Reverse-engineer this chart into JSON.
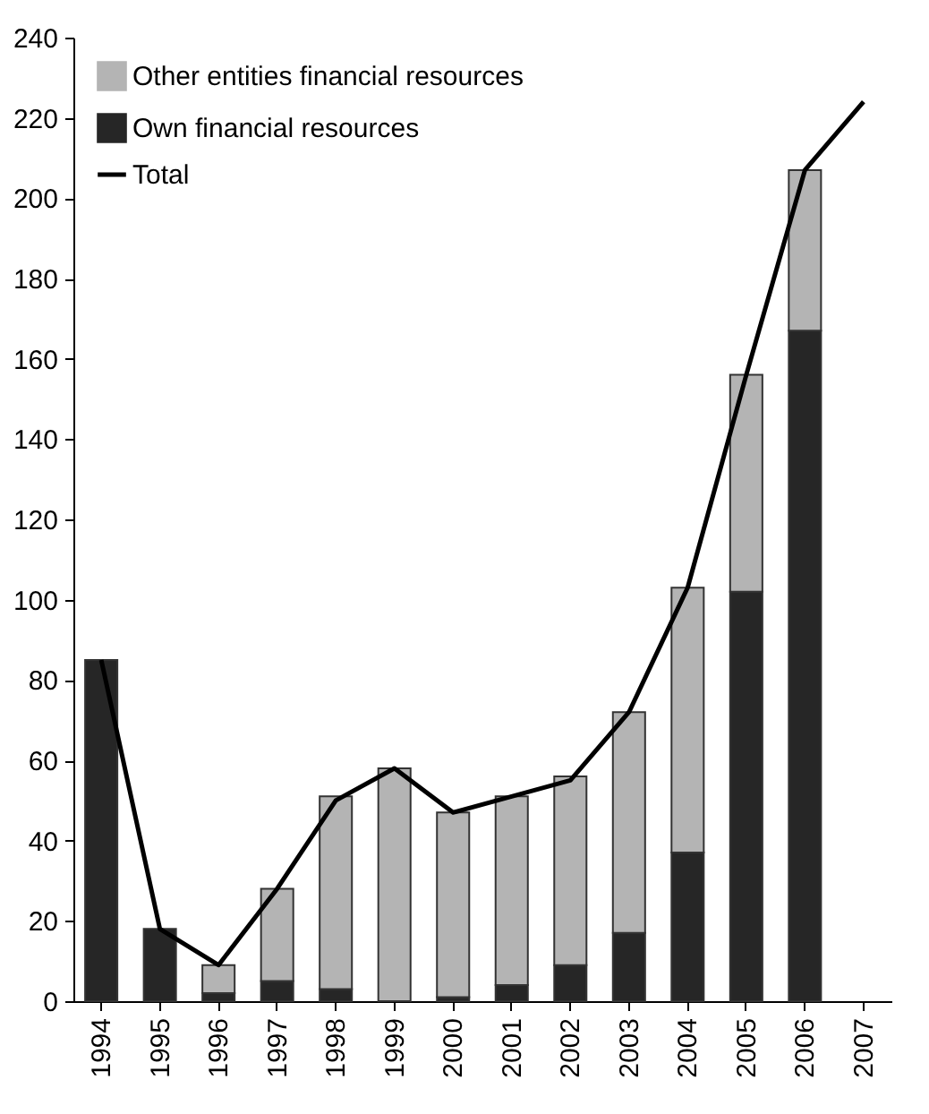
{
  "chart_data": {
    "type": "bar",
    "stacked": true,
    "categories": [
      "1994",
      "1995",
      "1996",
      "1997",
      "1998",
      "1999",
      "2000",
      "2001",
      "2002",
      "2003",
      "2004",
      "2005",
      "2006",
      "2007"
    ],
    "series": [
      {
        "name": "Own financial resources",
        "color": "#262626",
        "values": [
          85,
          18,
          2,
          5,
          3,
          null,
          1,
          4,
          9,
          17,
          37,
          102,
          167,
          null
        ]
      },
      {
        "name": "Other entities financial resources",
        "color": "#b4b4b4",
        "values": [
          null,
          null,
          7,
          23,
          48,
          58,
          46,
          47,
          47,
          55,
          66,
          54,
          40,
          null
        ]
      },
      {
        "name": "Total",
        "type": "line",
        "color": "#000000",
        "values": [
          85,
          18,
          9,
          28,
          50,
          58,
          47,
          51,
          55,
          72,
          103,
          156,
          207,
          224
        ]
      }
    ],
    "ylim": [
      0,
      240
    ],
    "yticks": [
      0,
      20,
      40,
      60,
      80,
      100,
      120,
      140,
      160,
      180,
      200,
      220,
      240
    ],
    "grid": false,
    "legend": "top left"
  }
}
